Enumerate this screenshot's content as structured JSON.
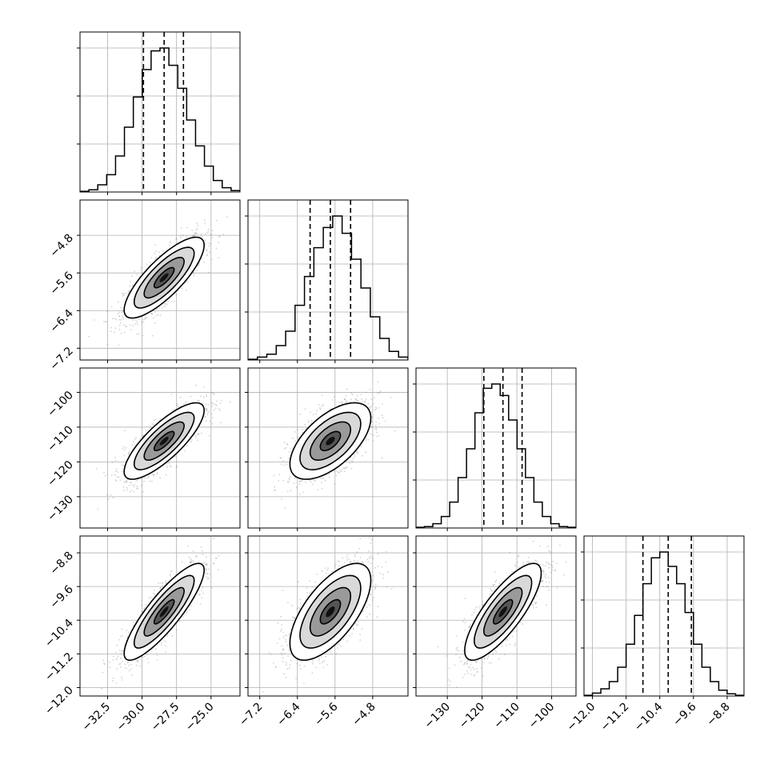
{
  "chart_data": {
    "type": "corner",
    "params": [
      {
        "id": "p0",
        "range": [
          -34.5,
          -22.9
        ],
        "ticks": [
          -32.5,
          -30.0,
          -27.5,
          -25.0
        ],
        "tick_labels": [
          "−32.5",
          "−30.0",
          "−27.5",
          "−25.0"
        ],
        "quantiles": [
          -29.9,
          -28.4,
          -27.0
        ],
        "hist": [
          0.5,
          1.5,
          5,
          12,
          25,
          45,
          66,
          85,
          98,
          100,
          88,
          72,
          50,
          32,
          18,
          8,
          3,
          1
        ]
      },
      {
        "id": "p1",
        "range": [
          -7.45,
          -4.05
        ],
        "ticks": [
          -7.2,
          -6.4,
          -5.6,
          -4.8
        ],
        "tick_labels": [
          "−7.2",
          "−6.4",
          "−5.6",
          "−4.8"
        ],
        "quantiles": [
          -6.13,
          -5.7,
          -5.27
        ],
        "hist": [
          0.5,
          2,
          4,
          10,
          20,
          38,
          58,
          78,
          92,
          100,
          88,
          70,
          50,
          30,
          15,
          6,
          2
        ]
      },
      {
        "id": "p2",
        "range": [
          -139,
          -93
        ],
        "ticks": [
          -130,
          -120,
          -110,
          -100
        ],
        "tick_labels": [
          "−130",
          "−120",
          "−110",
          "−100"
        ],
        "quantiles": [
          -119.5,
          -114.0,
          -108.5
        ],
        "hist": [
          0.5,
          1,
          3,
          8,
          18,
          35,
          55,
          80,
          97,
          100,
          92,
          75,
          55,
          35,
          18,
          8,
          3,
          1,
          0.5
        ]
      },
      {
        "id": "p3",
        "range": [
          -12.2,
          -8.4
        ],
        "ticks": [
          -12.0,
          -11.2,
          -10.4,
          -9.6,
          -8.8
        ],
        "tick_labels": [
          "−12.0",
          "−11.2",
          "−10.4",
          "−9.6",
          "−8.8"
        ],
        "quantiles": [
          -10.8,
          -10.2,
          -9.65
        ],
        "hist": [
          0.5,
          2,
          5,
          10,
          20,
          36,
          56,
          78,
          96,
          100,
          90,
          78,
          58,
          36,
          20,
          10,
          4,
          1.5,
          0.5
        ]
      }
    ],
    "correlations": {
      "1-0": 0.8,
      "2-0": 0.8,
      "2-1": 0.6,
      "3-0": 0.86,
      "3-1": 0.65,
      "3-2": 0.8
    },
    "show_grid": true,
    "scatter_color": "#808080",
    "line_color": "#000000",
    "quantile_line_style": "dashed"
  }
}
